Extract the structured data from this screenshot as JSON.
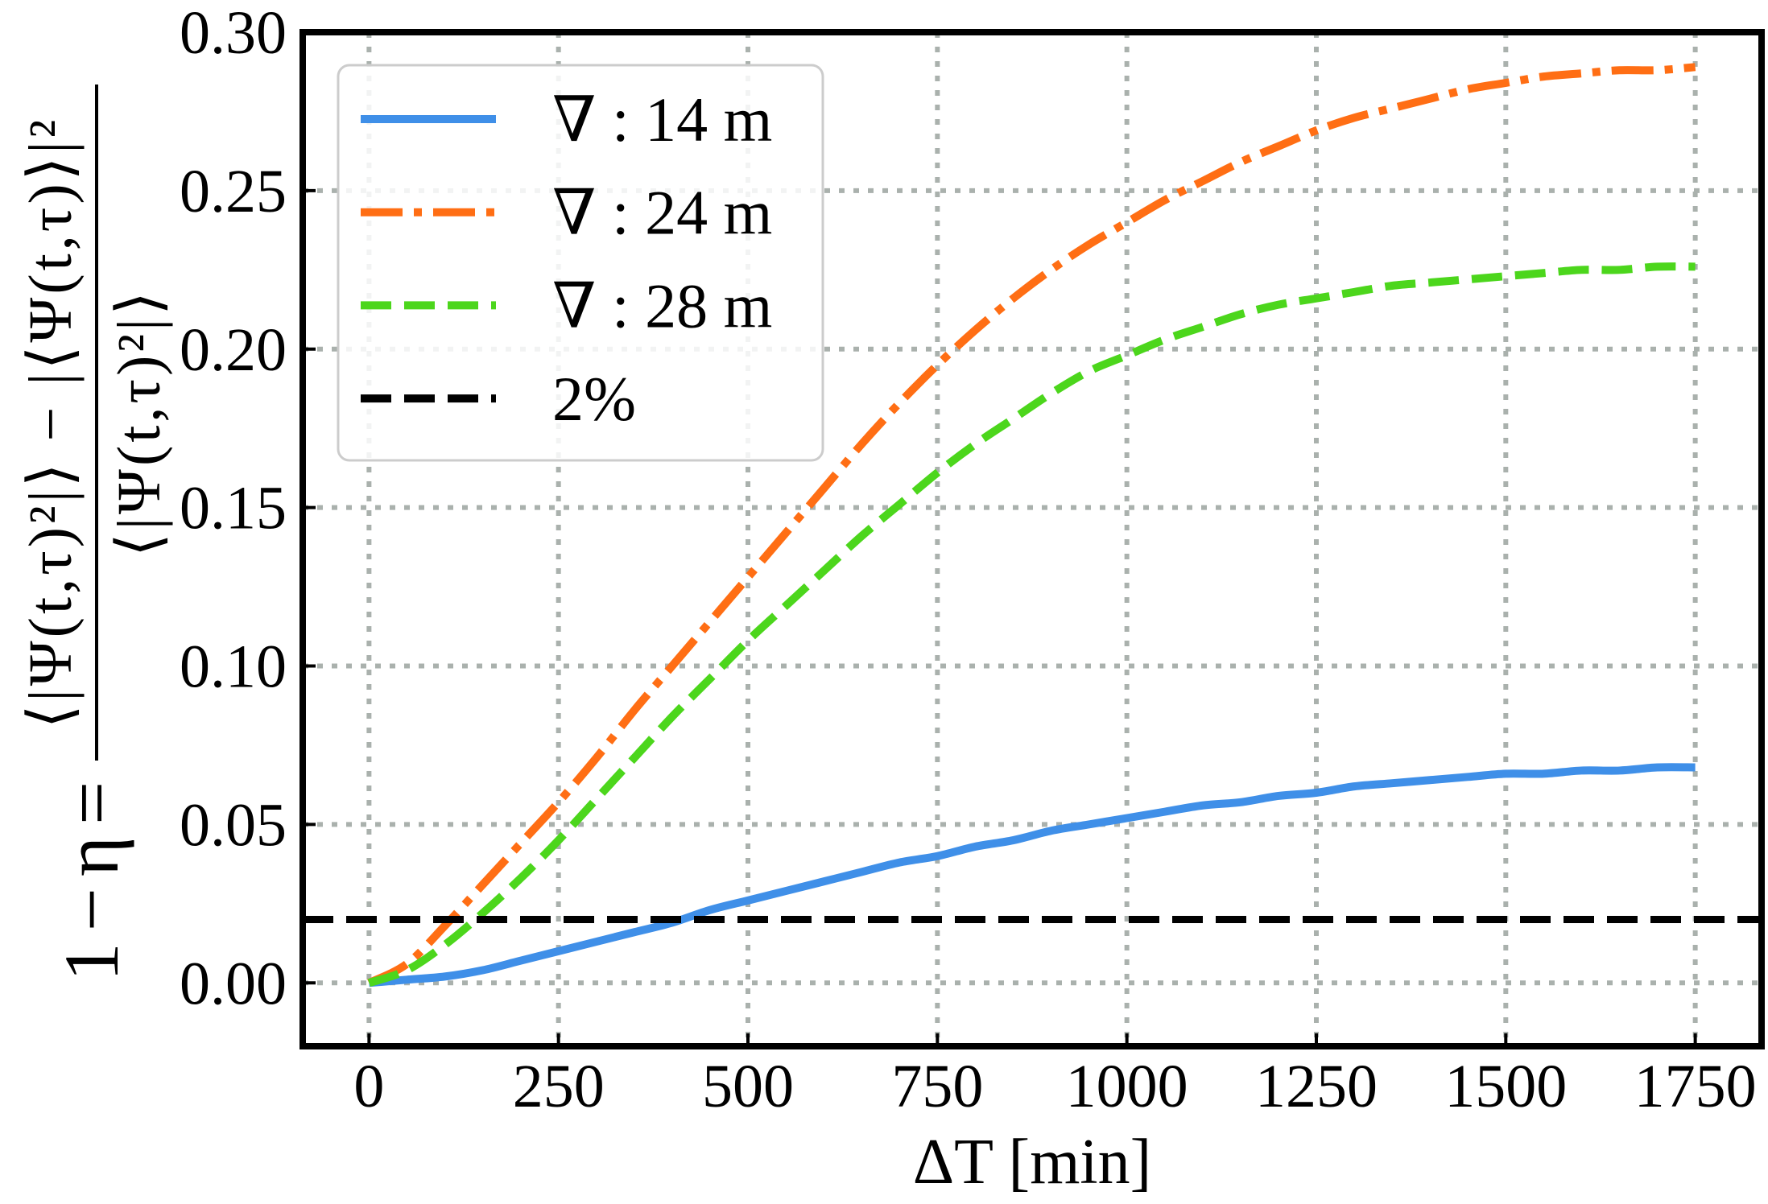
{
  "chart_data": {
    "type": "line",
    "title": "",
    "xlabel": "ΔT [min]",
    "ylabel": {
      "lhs": "1 − η =",
      "numerator": "⟨|Ψ(t,τ)²|⟩ − |⟨Ψ(t,τ)⟩|²",
      "denominator": "⟨|Ψ(t,τ)²|⟩"
    },
    "xlim": [
      -87.5,
      1837.5
    ],
    "ylim": [
      -0.02,
      0.3
    ],
    "xticks": [
      0,
      250,
      500,
      750,
      1000,
      1250,
      1500,
      1750
    ],
    "xtick_labels": [
      "0",
      "250",
      "500",
      "750",
      "1000",
      "1250",
      "1500",
      "1750"
    ],
    "yticks": [
      0,
      0.05,
      0.1,
      0.15,
      0.2,
      0.25,
      0.3
    ],
    "ytick_labels": [
      "0.00",
      "0.05",
      "0.10",
      "0.15",
      "0.20",
      "0.25",
      "0.30"
    ],
    "grid": true,
    "legend": "upper-left",
    "x": [
      0,
      50,
      100,
      150,
      200,
      250,
      300,
      350,
      400,
      450,
      500,
      550,
      600,
      650,
      700,
      750,
      800,
      850,
      900,
      950,
      1000,
      1050,
      1100,
      1150,
      1200,
      1250,
      1300,
      1350,
      1400,
      1450,
      1500,
      1550,
      1600,
      1650,
      1700,
      1750
    ],
    "series": [
      {
        "name": "∇ : 14 m",
        "color": "#3f8fe8",
        "linestyle": "solid",
        "values": [
          0.0,
          0.001,
          0.002,
          0.004,
          0.007,
          0.01,
          0.013,
          0.016,
          0.019,
          0.023,
          0.026,
          0.029,
          0.032,
          0.035,
          0.038,
          0.04,
          0.043,
          0.045,
          0.048,
          0.05,
          0.052,
          0.054,
          0.056,
          0.057,
          0.059,
          0.06,
          0.062,
          0.063,
          0.064,
          0.065,
          0.066,
          0.066,
          0.067,
          0.067,
          0.068,
          0.068
        ]
      },
      {
        "name": "∇ : 24 m",
        "color": "#ff6e14",
        "linestyle": "dash-dot",
        "values": [
          0.0,
          0.006,
          0.018,
          0.031,
          0.044,
          0.057,
          0.071,
          0.086,
          0.1,
          0.114,
          0.128,
          0.142,
          0.156,
          0.17,
          0.183,
          0.195,
          0.206,
          0.216,
          0.225,
          0.233,
          0.24,
          0.247,
          0.253,
          0.259,
          0.264,
          0.269,
          0.273,
          0.276,
          0.279,
          0.282,
          0.284,
          0.286,
          0.287,
          0.288,
          0.288,
          0.289
        ]
      },
      {
        "name": "∇ : 28 m",
        "color": "#4cd61c",
        "linestyle": "dashed",
        "values": [
          0.0,
          0.004,
          0.012,
          0.022,
          0.033,
          0.045,
          0.058,
          0.071,
          0.084,
          0.096,
          0.108,
          0.119,
          0.13,
          0.141,
          0.151,
          0.161,
          0.17,
          0.178,
          0.186,
          0.193,
          0.198,
          0.203,
          0.207,
          0.211,
          0.214,
          0.216,
          0.218,
          0.22,
          0.221,
          0.222,
          0.223,
          0.224,
          0.225,
          0.225,
          0.226,
          0.226
        ]
      },
      {
        "name": "2%",
        "color": "#000000",
        "linestyle": "dashed",
        "hline": 0.02
      }
    ]
  }
}
